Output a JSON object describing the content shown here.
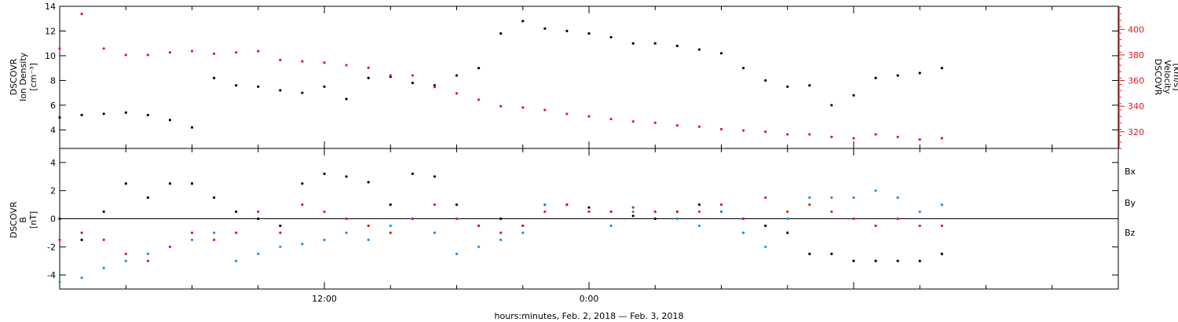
{
  "colors": {
    "black": "#000000",
    "red": "#e41a1c",
    "blue": "#1f8fe0"
  },
  "xlabel": "hours:minutes, Feb.  2, 2018 — Feb.  3, 2018",
  "chart_data": [
    {
      "id": "density-velocity",
      "type": "scatter",
      "x_range_hours": [
        0,
        48
      ],
      "x_tick_labels": [
        {
          "hour": 12,
          "label": "12:00"
        },
        {
          "hour": 24,
          "label": "0:00"
        }
      ],
      "left_axis": {
        "label_lines": [
          "DSCOVR",
          "Ion Density",
          "[cm⁻³]"
        ],
        "ylim": [
          2.5,
          14
        ],
        "ticks": [
          4,
          6,
          8,
          10,
          12,
          14
        ],
        "color": "#000000"
      },
      "right_axis": {
        "label_lines": [
          "DSCOVR",
          "Velocity",
          "[km/s]"
        ],
        "ylim": [
          307,
          418
        ],
        "ticks": [
          320,
          340,
          360,
          380,
          400
        ],
        "color": "#e41a1c"
      },
      "series": [
        {
          "name": "",
          "axis": "left",
          "color": "#000000",
          "x": [
            0,
            1,
            2,
            3,
            4,
            5,
            6,
            7,
            8,
            9,
            10,
            11,
            12,
            13,
            14,
            15,
            16,
            17,
            18,
            19,
            20,
            21,
            22,
            23,
            24,
            25,
            26,
            27,
            28,
            29,
            30,
            31,
            32,
            33,
            34,
            35,
            36,
            37,
            38,
            39,
            40
          ],
          "y": [
            5,
            5.2,
            5.3,
            5.4,
            5.2,
            4.8,
            4.2,
            8.2,
            7.6,
            7.5,
            7.2,
            7.0,
            7.5,
            6.5,
            8.2,
            8.3,
            7.8,
            7.6,
            8.4,
            9.0,
            11.8,
            12.8,
            12.2,
            12.0,
            11.8,
            11.5,
            11.0,
            11.0,
            10.8,
            10.5,
            10.2,
            9.0,
            8.0,
            7.5,
            7.6,
            6.0,
            6.8,
            8.2,
            8.4,
            8.6,
            9.0
          ]
        },
        {
          "name": "",
          "axis": "right",
          "color": "#e41a1c",
          "x": [
            0,
            1,
            2,
            3,
            4,
            5,
            6,
            7,
            8,
            9,
            10,
            11,
            12,
            13,
            14,
            15,
            16,
            17,
            18,
            19,
            20,
            21,
            22,
            23,
            24,
            25,
            26,
            27,
            28,
            29,
            30,
            31,
            32,
            33,
            34,
            35,
            36,
            37,
            38,
            39,
            40
          ],
          "y": [
            385,
            412,
            385,
            380,
            380,
            382,
            383,
            381,
            382,
            383,
            376,
            375,
            374,
            372,
            370,
            364,
            364,
            355,
            350,
            345,
            340,
            339,
            337,
            334,
            332,
            330,
            328,
            327,
            325,
            324,
            322,
            321,
            320,
            318,
            318,
            316,
            315,
            318,
            316,
            314,
            315
          ]
        }
      ]
    },
    {
      "id": "magnetic-field",
      "type": "scatter",
      "x_range_hours": [
        0,
        48
      ],
      "x_tick_labels": [
        {
          "hour": 12,
          "label": "12:00"
        },
        {
          "hour": 24,
          "label": "0:00"
        }
      ],
      "left_axis": {
        "label_lines": [
          "DSCOVR",
          "B",
          "[nT]"
        ],
        "ylim": [
          -5,
          5
        ],
        "ticks": [
          -4,
          -2,
          0,
          2,
          4
        ]
      },
      "zero_line": true,
      "series": [
        {
          "name": "Bx",
          "color": "#000000",
          "x": [
            0,
            1,
            2,
            3,
            4,
            5,
            6,
            7,
            8,
            9,
            10,
            11,
            12,
            13,
            14,
            15,
            16,
            17,
            18,
            19,
            20,
            21,
            22,
            23,
            24,
            25,
            26,
            27,
            28,
            29,
            30,
            31,
            32,
            33,
            34,
            35,
            36,
            37,
            38,
            39,
            40
          ],
          "y": [
            0,
            -1.5,
            0.5,
            2.5,
            1.5,
            2.5,
            2.5,
            1.5,
            0.5,
            0.0,
            -0.5,
            2.5,
            3.2,
            3.0,
            2.6,
            1.0,
            3.2,
            3.0,
            1.0,
            -0.5,
            0.0,
            -0.5,
            1.0,
            1.0,
            0.8,
            0.5,
            0.2,
            0.0,
            0.5,
            1.0,
            0.5,
            0.0,
            -0.5,
            -1.0,
            -2.5,
            -2.5,
            -3.0,
            -3.0,
            -3.0,
            -3.0,
            -2.5
          ]
        },
        {
          "name": "By",
          "color": "#1f8fe0",
          "x": [
            0,
            1,
            2,
            3,
            4,
            5,
            6,
            7,
            8,
            9,
            10,
            11,
            12,
            13,
            14,
            15,
            16,
            17,
            18,
            19,
            20,
            21,
            22,
            23,
            24,
            25,
            26,
            27,
            28,
            29,
            30,
            31,
            32,
            33,
            34,
            35,
            36,
            37,
            38,
            39,
            40
          ],
          "y": [
            -4.5,
            -4.2,
            -3.5,
            -3.0,
            -2.5,
            -2.0,
            -1.5,
            -1.0,
            -3.0,
            -2.5,
            -2.0,
            -1.8,
            -1.5,
            -1.0,
            -1.5,
            -0.5,
            0.0,
            -1.0,
            -2.5,
            -2.0,
            -1.5,
            -1.0,
            1.0,
            1.0,
            0.5,
            -0.5,
            0.5,
            0.5,
            0.0,
            -0.5,
            0.5,
            -1.0,
            -2.0,
            0.0,
            1.5,
            1.5,
            1.5,
            2.0,
            1.5,
            0.5,
            1.0
          ]
        },
        {
          "name": "Bz",
          "color": "#e41a1c",
          "x": [
            0,
            1,
            2,
            3,
            4,
            5,
            6,
            7,
            8,
            9,
            10,
            11,
            12,
            13,
            14,
            15,
            16,
            17,
            18,
            19,
            20,
            21,
            22,
            23,
            24,
            25,
            26,
            27,
            28,
            29,
            30,
            31,
            32,
            33,
            34,
            35,
            36,
            37,
            38,
            39,
            40
          ],
          "y": [
            -1.5,
            -1.0,
            -1.5,
            -2.5,
            -3.0,
            -2.0,
            -1.0,
            -1.5,
            -1.0,
            0.5,
            -1.0,
            1.0,
            0.5,
            0.0,
            -0.5,
            -1.0,
            0.0,
            1.0,
            0.0,
            -0.5,
            -1.0,
            -0.5,
            0.5,
            1.0,
            0.5,
            0.5,
            0.8,
            0.5,
            0.5,
            0.5,
            1.0,
            0.0,
            1.5,
            0.5,
            1.0,
            0.5,
            0.0,
            -0.5,
            0.0,
            -0.5,
            -0.5
          ]
        }
      ]
    }
  ]
}
